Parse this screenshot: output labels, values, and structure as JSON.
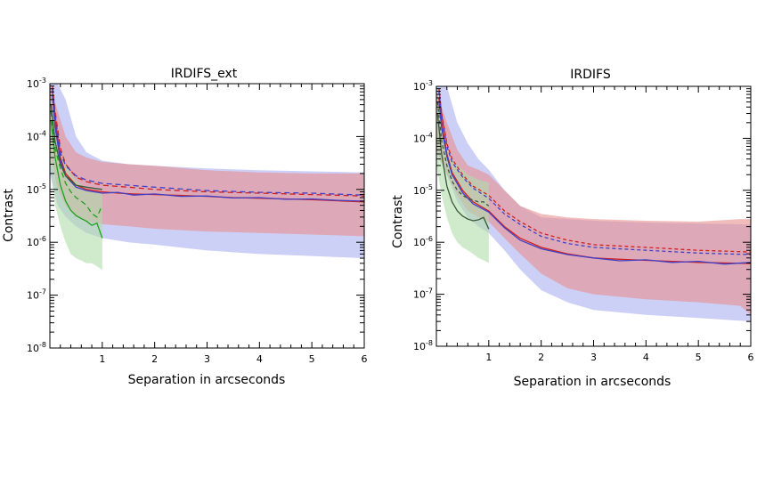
{
  "chart_data": [
    {
      "type": "line",
      "title": "IRDIFS_ext",
      "xlabel": "Separation in arcseconds",
      "ylabel": "Contrast",
      "xlim": [
        0.0,
        6.0
      ],
      "ylim": [
        1e-08,
        0.001
      ],
      "yscale": "log",
      "xticks": [
        "1",
        "2",
        "3",
        "4",
        "5",
        "6"
      ],
      "yticks": [
        {
          "base": "10",
          "exp": "-3",
          "v": 0.001
        },
        {
          "base": "10",
          "exp": "-4",
          "v": 0.0001
        },
        {
          "base": "10",
          "exp": "-5",
          "v": 1e-05
        },
        {
          "base": "10",
          "exp": "-6",
          "v": 1e-06
        },
        {
          "base": "10",
          "exp": "-7",
          "v": 1e-07
        },
        {
          "base": "10",
          "exp": "-8",
          "v": 1e-08
        }
      ],
      "bands": [
        {
          "color": "#aab0f0",
          "x": [
            0.0,
            0.15,
            0.3,
            0.5,
            0.7,
            1.0,
            1.5,
            2.0,
            3.0,
            4.0,
            5.0,
            6.0
          ],
          "upper": [
            0.001,
            0.001,
            0.0005,
            0.0001,
            5e-05,
            3.5e-05,
            3e-05,
            2.8e-05,
            2.5e-05,
            2.3e-05,
            2.2e-05,
            2.1e-05
          ],
          "lower": [
            2e-05,
            5e-06,
            3e-06,
            2e-06,
            1.5e-06,
            1.2e-06,
            1e-06,
            9e-07,
            7e-07,
            6e-07,
            5.5e-07,
            5e-07
          ]
        },
        {
          "color": "#e89090",
          "x": [
            0.0,
            0.15,
            0.3,
            0.5,
            0.7,
            1.0,
            1.5,
            2.0,
            3.0,
            4.0,
            5.0,
            6.0
          ],
          "upper": [
            0.001,
            0.0003,
            0.0001,
            5e-05,
            4e-05,
            3.3e-05,
            3e-05,
            2.8e-05,
            2.3e-05,
            2.1e-05,
            2e-05,
            2e-05
          ],
          "lower": [
            5e-05,
            1e-05,
            5e-06,
            3e-06,
            2.5e-06,
            2.2e-06,
            2e-06,
            1.8e-06,
            1.6e-06,
            1.5e-06,
            1.4e-06,
            1.3e-06
          ]
        },
        {
          "color": "#b0dcaa",
          "x": [
            0.0,
            0.1,
            0.2,
            0.3,
            0.4,
            0.5,
            0.6,
            0.7,
            0.8,
            0.9,
            1.0
          ],
          "upper": [
            0.0006,
            0.00015,
            6e-05,
            3e-05,
            2e-05,
            1.5e-05,
            1.2e-05,
            1e-05,
            9e-06,
            9e-06,
            8e-06
          ],
          "lower": [
            3e-05,
            5e-06,
            2e-06,
            1e-06,
            6e-07,
            5e-07,
            4.5e-07,
            4e-07,
            4e-07,
            3.5e-07,
            3e-07
          ]
        }
      ],
      "series": [
        {
          "color": "#d02020",
          "dash": "",
          "x": [
            0.05,
            0.1,
            0.2,
            0.3,
            0.5,
            0.7,
            1.0,
            1.3,
            1.6,
            2.0,
            2.5,
            3.0,
            3.5,
            4.0,
            4.5,
            5.0,
            5.5,
            6.0
          ],
          "y": [
            0.0008,
            0.0002,
            4e-05,
            2e-05,
            1.2e-05,
            1e-05,
            9e-06,
            8.5e-06,
            8.2e-06,
            8e-06,
            7.7e-06,
            7.4e-06,
            7e-06,
            6.8e-06,
            6.6e-06,
            6.4e-06,
            6.1e-06,
            5.8e-06
          ]
        },
        {
          "color": "#4040c8",
          "dash": "",
          "x": [
            0.05,
            0.1,
            0.2,
            0.3,
            0.5,
            0.7,
            1.0,
            1.3,
            1.6,
            2.0,
            2.5,
            3.0,
            3.5,
            4.0,
            4.5,
            5.0,
            5.5,
            6.0
          ],
          "y": [
            0.0006,
            0.00015,
            3.5e-05,
            1.8e-05,
            1.1e-05,
            9.5e-06,
            8.5e-06,
            8.8e-06,
            7.8e-06,
            8.2e-06,
            7.4e-06,
            7.5e-06,
            6.9e-06,
            7e-06,
            6.5e-06,
            6.6e-06,
            6.2e-06,
            6e-06
          ]
        },
        {
          "color": "#d02020",
          "dash": "6,4",
          "x": [
            0.05,
            0.1,
            0.2,
            0.3,
            0.5,
            0.7,
            1.0,
            1.5,
            2.0,
            3.0,
            4.0,
            5.0,
            6.0
          ],
          "y": [
            0.0009,
            0.0003,
            6e-05,
            3e-05,
            1.7e-05,
            1.4e-05,
            1.2e-05,
            1.1e-05,
            1e-05,
            9e-06,
            8.5e-06,
            8e-06,
            7.5e-06
          ]
        },
        {
          "color": "#4040c8",
          "dash": "6,4",
          "x": [
            0.05,
            0.1,
            0.2,
            0.3,
            0.5,
            0.7,
            1.0,
            1.5,
            2.0,
            3.0,
            4.0,
            5.0,
            6.0
          ],
          "y": [
            0.0008,
            0.00025,
            5e-05,
            2.8e-05,
            1.8e-05,
            1.5e-05,
            1.3e-05,
            1.2e-05,
            1.1e-05,
            9.5e-06,
            8.8e-06,
            8.5e-06,
            7.8e-06
          ]
        },
        {
          "color": "#20a020",
          "dash": "",
          "x": [
            0.02,
            0.1,
            0.2,
            0.3,
            0.4,
            0.5,
            0.6,
            0.7,
            0.8,
            0.9,
            1.0
          ],
          "y": [
            0.0002,
            4e-05,
            1.2e-05,
            6e-06,
            4e-06,
            3.2e-06,
            2.8e-06,
            2.5e-06,
            2.1e-06,
            2.3e-06,
            1.2e-06
          ]
        },
        {
          "color": "#20a020",
          "dash": "6,4",
          "x": [
            0.02,
            0.1,
            0.2,
            0.3,
            0.4,
            0.5,
            0.6,
            0.7,
            0.8,
            0.9,
            1.0
          ],
          "y": [
            0.0003,
            6e-05,
            2.5e-05,
            1.3e-05,
            9e-06,
            7e-06,
            6e-06,
            5e-06,
            3.5e-06,
            3e-06,
            5e-06
          ]
        },
        {
          "color": "#3a5a3a",
          "dash": "",
          "x": [
            0.02,
            0.1,
            0.2,
            0.3,
            0.5,
            0.7,
            1.0
          ],
          "y": [
            0.0004,
            8e-05,
            3e-05,
            1.8e-05,
            1.2e-05,
            1.1e-05,
            1e-05
          ]
        }
      ]
    },
    {
      "type": "line",
      "title": "IRDIFS",
      "xlabel": "Separation in arcseconds",
      "ylabel": "Contrast",
      "xlim": [
        0.0,
        6.0
      ],
      "ylim": [
        1e-08,
        0.001
      ],
      "yscale": "log",
      "xticks": [
        "1",
        "2",
        "3",
        "4",
        "5",
        "6"
      ],
      "yticks": [
        {
          "base": "10",
          "exp": "-3",
          "v": 0.001
        },
        {
          "base": "10",
          "exp": "-4",
          "v": 0.0001
        },
        {
          "base": "10",
          "exp": "-5",
          "v": 1e-05
        },
        {
          "base": "10",
          "exp": "-6",
          "v": 1e-06
        },
        {
          "base": "10",
          "exp": "-7",
          "v": 1e-07
        },
        {
          "base": "10",
          "exp": "-8",
          "v": 1e-08
        }
      ],
      "bands": [
        {
          "color": "#aab0f0",
          "x": [
            0.0,
            0.2,
            0.4,
            0.6,
            0.8,
            1.0,
            1.3,
            1.6,
            2.0,
            2.5,
            3.0,
            4.0,
            5.0,
            6.0
          ],
          "upper": [
            0.001,
            0.001,
            0.0002,
            8e-05,
            4e-05,
            2.5e-05,
            1e-05,
            5e-06,
            3e-06,
            2.8e-06,
            2.6e-06,
            2.4e-06,
            2.3e-06,
            2.2e-06
          ],
          "lower": [
            5e-05,
            2e-05,
            6e-06,
            3e-06,
            2e-06,
            1.5e-06,
            7e-07,
            3e-07,
            1.2e-07,
            7e-08,
            5e-08,
            4e-08,
            3.5e-08,
            3e-08
          ]
        },
        {
          "color": "#e89090",
          "x": [
            0.0,
            0.2,
            0.4,
            0.6,
            0.8,
            1.0,
            1.3,
            1.6,
            2.0,
            2.5,
            3.0,
            4.0,
            5.0,
            5.8,
            6.0
          ],
          "upper": [
            0.0008,
            0.0002,
            6e-05,
            3e-05,
            2.5e-05,
            2e-05,
            1e-05,
            5e-06,
            3.5e-06,
            3e-06,
            2.8e-06,
            2.6e-06,
            2.5e-06,
            2.8e-06,
            2.8e-06
          ],
          "lower": [
            6e-05,
            2e-05,
            8e-06,
            4e-06,
            3e-06,
            2.5e-06,
            1.2e-06,
            6e-07,
            2.5e-07,
            1.3e-07,
            1e-07,
            8e-08,
            7e-08,
            6e-08,
            4e-08
          ]
        },
        {
          "color": "#b0dcaa",
          "x": [
            0.0,
            0.1,
            0.2,
            0.3,
            0.4,
            0.5,
            0.6,
            0.7,
            0.8,
            0.9,
            1.0
          ],
          "upper": [
            0.0008,
            0.0002,
            7e-05,
            4e-05,
            3e-05,
            2.5e-05,
            2e-05,
            1.8e-05,
            1.6e-05,
            1.5e-05,
            1.4e-05
          ],
          "lower": [
            3e-05,
            8e-06,
            3e-06,
            1.5e-06,
            1e-06,
            8e-07,
            7e-07,
            6e-07,
            5e-07,
            4.5e-07,
            4e-07
          ]
        }
      ],
      "series": [
        {
          "color": "#d02020",
          "dash": "",
          "x": [
            0.05,
            0.1,
            0.2,
            0.3,
            0.5,
            0.7,
            1.0,
            1.3,
            1.6,
            2.0,
            2.5,
            3.0,
            3.5,
            4.0,
            4.5,
            5.0,
            5.5,
            6.0
          ],
          "y": [
            0.0006,
            0.0002,
            5e-05,
            2.2e-05,
            1e-05,
            6e-06,
            4e-06,
            2e-06,
            1.2e-06,
            8e-07,
            6e-07,
            5e-07,
            4.7e-07,
            4.5e-07,
            4.3e-07,
            4.1e-07,
            4e-07,
            3.9e-07
          ]
        },
        {
          "color": "#4040c8",
          "dash": "",
          "x": [
            0.05,
            0.1,
            0.2,
            0.3,
            0.5,
            0.7,
            1.0,
            1.3,
            1.6,
            2.0,
            2.5,
            3.0,
            3.5,
            4.0,
            4.5,
            5.0,
            5.5,
            6.0
          ],
          "y": [
            0.0005,
            0.00016,
            4.5e-05,
            2e-05,
            9e-06,
            5.5e-06,
            3.8e-06,
            1.9e-06,
            1.1e-06,
            7.5e-07,
            5.8e-07,
            5e-07,
            4.4e-07,
            4.6e-07,
            4.1e-07,
            4.3e-07,
            3.8e-07,
            4.1e-07
          ]
        },
        {
          "color": "#d02020",
          "dash": "4,3",
          "x": [
            0.05,
            0.1,
            0.2,
            0.3,
            0.5,
            0.7,
            1.0,
            1.3,
            1.6,
            2.0,
            2.5,
            3.0,
            4.0,
            5.0,
            6.0
          ],
          "y": [
            0.0009,
            0.0003,
            8e-05,
            4e-05,
            2e-05,
            1.2e-05,
            8e-06,
            4e-06,
            2.5e-06,
            1.5e-06,
            1.1e-06,
            9e-07,
            8e-07,
            7e-07,
            6.5e-07
          ]
        },
        {
          "color": "#4040c8",
          "dash": "4,3",
          "x": [
            0.05,
            0.1,
            0.2,
            0.3,
            0.5,
            0.7,
            1.0,
            1.3,
            1.6,
            2.0,
            2.5,
            3.0,
            4.0,
            5.0,
            6.0
          ],
          "y": [
            0.0008,
            0.00028,
            7e-05,
            3.5e-05,
            1.8e-05,
            1.1e-05,
            7e-06,
            3.5e-06,
            2.2e-06,
            1.3e-06,
            9.5e-07,
            8e-07,
            7e-07,
            6.2e-07,
            5.8e-07
          ]
        },
        {
          "color": "#3a5a3a",
          "dash": "",
          "x": [
            0.02,
            0.1,
            0.2,
            0.3,
            0.4,
            0.5,
            0.6,
            0.7,
            0.8,
            0.9,
            1.0
          ],
          "y": [
            0.0003,
            5e-05,
            1.2e-05,
            6e-06,
            4e-06,
            3.2e-06,
            2.8e-06,
            2.6e-06,
            2.7e-06,
            3e-06,
            1.8e-06
          ]
        },
        {
          "color": "#3a5a3a",
          "dash": "4,3",
          "x": [
            0.02,
            0.1,
            0.2,
            0.3,
            0.4,
            0.5,
            0.6,
            0.7,
            0.8,
            0.9,
            1.0
          ],
          "y": [
            0.0005,
            9e-05,
            3e-05,
            1.5e-05,
            1e-05,
            8e-06,
            7e-06,
            6.5e-06,
            6e-06,
            6e-06,
            5e-06
          ]
        }
      ]
    }
  ]
}
